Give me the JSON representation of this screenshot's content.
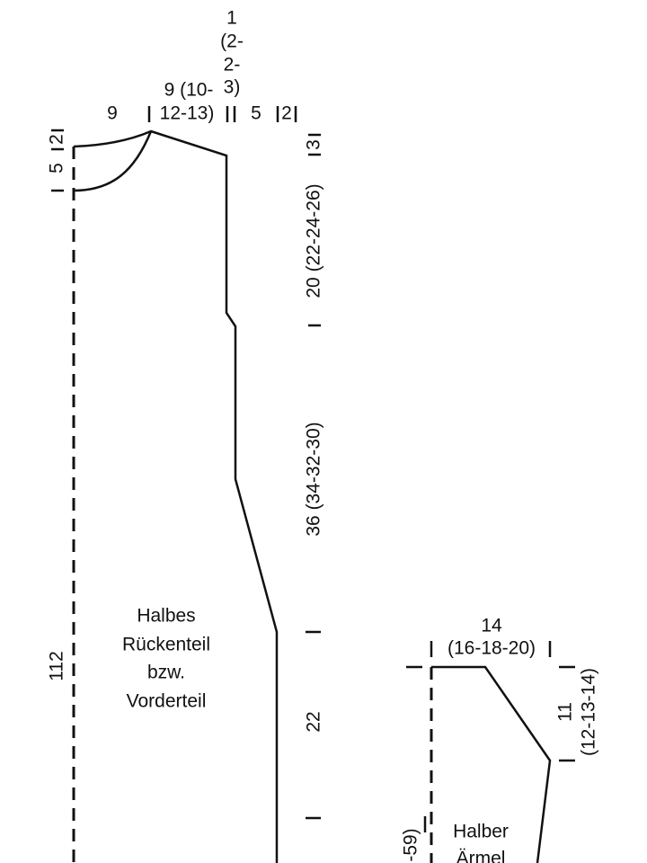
{
  "body": {
    "top_left": "9",
    "neck_width": [
      "9 (10-",
      "12-13)"
    ],
    "gap": [
      "1",
      "(2-",
      "2-",
      "3)"
    ],
    "shoulder": "5",
    "edge": "2",
    "neck_depth": "5",
    "neck_top": "2",
    "shoulder_drop": "3",
    "armhole": "20 (22-24-26)",
    "side": "36 (34-32-30)",
    "lower": "22",
    "length": "112",
    "label": [
      "Halbes",
      "Rückenteil",
      "bzw.",
      "Vorderteil"
    ]
  },
  "sleeve": {
    "top_width": "14",
    "top_width_sizes": "(16-18-20)",
    "cap": "11",
    "cap_sizes": "(12-13-14)",
    "length": "-59)",
    "label": [
      "Halber",
      "Ärmel"
    ]
  }
}
